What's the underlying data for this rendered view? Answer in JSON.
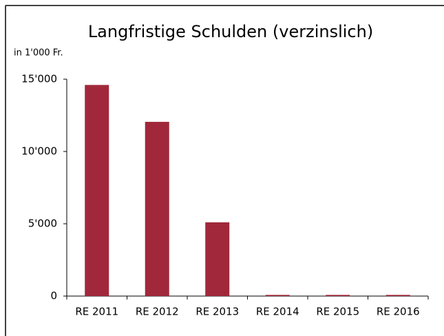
{
  "chart_data": {
    "type": "bar",
    "title": "Langfristige Schulden (verzinslich)",
    "subtitle": "in 1'000 Fr.",
    "categories": [
      "RE 2011",
      "RE 2012",
      "RE 2013",
      "RE 2014",
      "RE 2015",
      "RE 2016"
    ],
    "values": [
      14600,
      12050,
      5100,
      80,
      80,
      80
    ],
    "color": "#a0283a",
    "ylim": [
      0,
      15000
    ],
    "yticks": [
      0,
      {
        "value": 5000,
        "label": "5'000"
      },
      {
        "value": 10000,
        "label": "10'000"
      },
      {
        "value": 15000,
        "label": "15'000"
      }
    ],
    "grid": false
  }
}
